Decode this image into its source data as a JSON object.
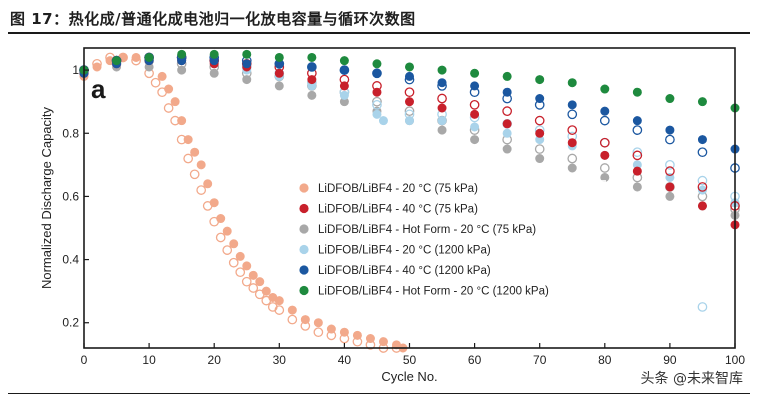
{
  "figure": {
    "title": "图 17：热化成/普通化成电池归一化放电容量与循环次数图",
    "source_mark": "头条 @未来智库"
  },
  "chart_data": {
    "type": "scatter",
    "panel_label": "a",
    "title": "",
    "xlabel": "Cycle No.",
    "ylabel": "Normalized Discharge Capacity",
    "xlim": [
      0,
      100
    ],
    "ylim": [
      0.12,
      1.07
    ],
    "x_ticks": [
      0,
      10,
      20,
      30,
      40,
      50,
      60,
      70,
      80,
      90,
      100
    ],
    "y_ticks": [
      0.2,
      0.4,
      0.6,
      0.8,
      1.0
    ],
    "y_tick_labels": [
      "0.2",
      "0.4",
      "0.6",
      "0.8",
      "1"
    ],
    "grid": false,
    "legend_position": "center",
    "series": [
      {
        "name": "LiDFOB/LiBF4 - 20 °C (75 kPa)",
        "color": "#f2a98b",
        "subseries": [
          {
            "marker": "filled",
            "x": [
              0,
              2,
              4,
              6,
              8,
              10,
              12,
              13,
              14,
              15,
              16,
              17,
              18,
              19,
              20,
              21,
              22,
              23,
              24,
              25,
              26,
              27,
              28,
              29,
              30,
              32,
              34,
              36,
              38,
              40,
              42,
              44,
              46,
              48,
              49
            ],
            "y": [
              0.98,
              1.01,
              1.03,
              1.04,
              1.04,
              1.03,
              0.98,
              0.94,
              0.9,
              0.84,
              0.78,
              0.74,
              0.7,
              0.64,
              0.58,
              0.53,
              0.49,
              0.45,
              0.41,
              0.38,
              0.35,
              0.33,
              0.3,
              0.28,
              0.27,
              0.24,
              0.21,
              0.2,
              0.18,
              0.17,
              0.16,
              0.15,
              0.14,
              0.13,
              0.12
            ]
          },
          {
            "marker": "hollow",
            "x": [
              0,
              2,
              4,
              6,
              8,
              10,
              11,
              12,
              13,
              14,
              15,
              16,
              17,
              18,
              19,
              20,
              21,
              22,
              23,
              24,
              25,
              26,
              27,
              28,
              29,
              30,
              32,
              34,
              36,
              38,
              40,
              42,
              44,
              46,
              48
            ],
            "y": [
              0.99,
              1.02,
              1.04,
              1.04,
              1.03,
              0.99,
              0.96,
              0.93,
              0.88,
              0.84,
              0.78,
              0.72,
              0.67,
              0.62,
              0.57,
              0.52,
              0.47,
              0.43,
              0.39,
              0.36,
              0.33,
              0.31,
              0.29,
              0.27,
              0.25,
              0.24,
              0.21,
              0.19,
              0.17,
              0.16,
              0.15,
              0.14,
              0.13,
              0.12,
              0.12
            ]
          }
        ]
      },
      {
        "name": "LiDFOB/LiBF4 - 40 °C (75 kPa)",
        "color": "#c8202b",
        "subseries": [
          {
            "marker": "filled",
            "x": [
              0,
              5,
              10,
              15,
              20,
              25,
              30,
              35,
              40,
              45,
              50,
              55,
              60,
              65,
              70,
              75,
              80,
              85,
              90,
              95,
              100
            ],
            "y": [
              0.99,
              1.02,
              1.03,
              1.03,
              1.02,
              1.01,
              0.99,
              0.97,
              0.95,
              0.93,
              0.9,
              0.88,
              0.86,
              0.83,
              0.8,
              0.77,
              0.73,
              0.68,
              0.63,
              0.57,
              0.51
            ]
          },
          {
            "marker": "hollow",
            "x": [
              0,
              5,
              10,
              15,
              20,
              25,
              30,
              35,
              40,
              45,
              50,
              55,
              60,
              65,
              70,
              75,
              80,
              85,
              90,
              95,
              100
            ],
            "y": [
              1.0,
              1.03,
              1.04,
              1.04,
              1.03,
              1.02,
              1.01,
              0.99,
              0.97,
              0.95,
              0.93,
              0.91,
              0.89,
              0.87,
              0.84,
              0.81,
              0.77,
              0.73,
              0.68,
              0.63,
              0.57
            ]
          }
        ]
      },
      {
        "name": "LiDFOB/LiBF4 - Hot Form - 20 °C (75 kPa)",
        "color": "#a8a8a8",
        "subseries": [
          {
            "marker": "filled",
            "x": [
              0,
              5,
              10,
              15,
              20,
              25,
              30,
              35,
              40,
              45,
              50,
              55,
              60,
              65,
              70,
              75,
              80,
              85,
              90,
              95,
              100
            ],
            "y": [
              0.99,
              1.01,
              1.01,
              1.0,
              0.99,
              0.97,
              0.95,
              0.92,
              0.9,
              0.87,
              0.84,
              0.81,
              0.78,
              0.75,
              0.72,
              0.69,
              0.66,
              0.63,
              0.6,
              0.57,
              0.54
            ]
          },
          {
            "marker": "hollow",
            "x": [
              0,
              5,
              10,
              15,
              20,
              25,
              30,
              35,
              40,
              45,
              50,
              55,
              60,
              65,
              70,
              75,
              80,
              85,
              90,
              95,
              100
            ],
            "y": [
              1.0,
              1.02,
              1.03,
              1.02,
              1.01,
              0.99,
              0.98,
              0.95,
              0.93,
              0.9,
              0.87,
              0.84,
              0.81,
              0.78,
              0.75,
              0.72,
              0.69,
              0.66,
              0.63,
              0.6,
              0.56
            ]
          }
        ]
      },
      {
        "name": "LiDFOB/LiBF4 - 20 °C (1200 kPa)",
        "color": "#a9d3ea",
        "subseries": [
          {
            "marker": "filled",
            "x": [
              0,
              5,
              10,
              15,
              20,
              25,
              30,
              35,
              40,
              45,
              46,
              50,
              55,
              60,
              65,
              70,
              75,
              80,
              85,
              90,
              95,
              100
            ],
            "y": [
              0.99,
              1.02,
              1.03,
              1.03,
              1.02,
              1.0,
              0.98,
              0.95,
              0.92,
              0.86,
              0.84,
              0.84,
              0.84,
              0.82,
              0.8,
              0.78,
              0.76,
              0.73,
              0.7,
              0.66,
              0.62,
              0.58
            ]
          },
          {
            "marker": "hollow",
            "x": [
              0,
              5,
              10,
              15,
              20,
              25,
              30,
              35,
              40,
              45,
              50,
              55,
              60,
              65,
              70,
              75,
              80,
              85,
              90,
              95,
              100
            ],
            "y": [
              1.0,
              1.03,
              1.04,
              1.04,
              1.03,
              1.01,
              0.99,
              0.96,
              0.93,
              0.89,
              0.86,
              0.86,
              0.85,
              0.83,
              0.81,
              0.79,
              0.77,
              0.74,
              0.7,
              0.65,
              0.6
            ]
          },
          {
            "marker": "hollow",
            "x": [
              95
            ],
            "y": [
              0.25
            ]
          }
        ]
      },
      {
        "name": "LiDFOB/LiBF4 - 40 °C (1200 kPa)",
        "color": "#1b57a0",
        "subseries": [
          {
            "marker": "filled",
            "x": [
              0,
              5,
              10,
              15,
              20,
              25,
              30,
              35,
              40,
              45,
              50,
              55,
              60,
              65,
              70,
              75,
              80,
              85,
              90,
              95,
              100
            ],
            "y": [
              0.99,
              1.02,
              1.03,
              1.03,
              1.03,
              1.02,
              1.02,
              1.01,
              1.0,
              0.99,
              0.98,
              0.96,
              0.95,
              0.93,
              0.91,
              0.89,
              0.87,
              0.84,
              0.81,
              0.78,
              0.75
            ]
          },
          {
            "marker": "hollow",
            "x": [
              0,
              5,
              10,
              15,
              20,
              25,
              30,
              35,
              40,
              45,
              50,
              55,
              60,
              65,
              70,
              75,
              80,
              85,
              90,
              95,
              100
            ],
            "y": [
              1.0,
              1.03,
              1.04,
              1.04,
              1.04,
              1.03,
              1.02,
              1.01,
              1.0,
              0.99,
              0.97,
              0.95,
              0.93,
              0.91,
              0.89,
              0.86,
              0.84,
              0.81,
              0.78,
              0.74,
              0.69
            ]
          }
        ]
      },
      {
        "name": "LiDFOB/LiBF4 - Hot Form - 20 °C (1200 kPa)",
        "color": "#1e8a3e",
        "subseries": [
          {
            "marker": "filled",
            "x": [
              0,
              5,
              10,
              15,
              20,
              25,
              30,
              35,
              40,
              45,
              50,
              55,
              60,
              65,
              70,
              75,
              80,
              85,
              90,
              95,
              100
            ],
            "y": [
              1.0,
              1.03,
              1.04,
              1.05,
              1.05,
              1.05,
              1.04,
              1.04,
              1.03,
              1.02,
              1.01,
              1.0,
              0.99,
              0.98,
              0.97,
              0.96,
              0.94,
              0.93,
              0.91,
              0.9,
              0.88
            ]
          }
        ]
      }
    ]
  }
}
